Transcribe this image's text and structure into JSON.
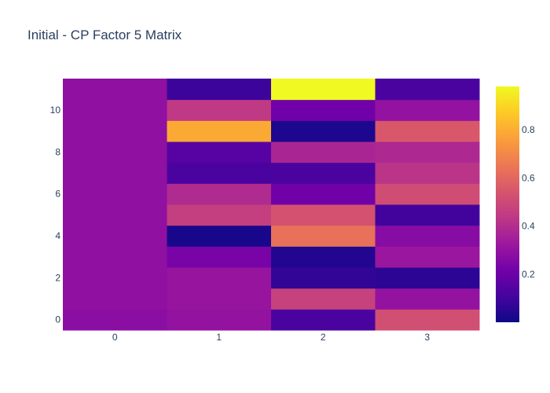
{
  "chart_data": {
    "type": "heatmap",
    "title": "Initial - CP Factor 5 Matrix",
    "x": [
      0,
      1,
      2,
      3
    ],
    "y": [
      0,
      1,
      2,
      3,
      4,
      5,
      6,
      7,
      8,
      9,
      10,
      11
    ],
    "x_ticks": [
      "0",
      "1",
      "2",
      "3"
    ],
    "y_ticks": [
      "0",
      "2",
      "4",
      "6",
      "8",
      "10"
    ],
    "z": [
      [
        0.28,
        0.3,
        0.12,
        0.52
      ],
      [
        0.29,
        0.31,
        0.47,
        0.3
      ],
      [
        0.29,
        0.31,
        0.07,
        0.06
      ],
      [
        0.29,
        0.23,
        0.04,
        0.32
      ],
      [
        0.29,
        0.02,
        0.63,
        0.27
      ],
      [
        0.29,
        0.46,
        0.53,
        0.1
      ],
      [
        0.29,
        0.39,
        0.21,
        0.51
      ],
      [
        0.29,
        0.12,
        0.12,
        0.42
      ],
      [
        0.29,
        0.15,
        0.37,
        0.38
      ],
      [
        0.29,
        0.79,
        0.03,
        0.55
      ],
      [
        0.29,
        0.44,
        0.21,
        0.3
      ],
      [
        0.29,
        0.09,
        0.98,
        0.12
      ]
    ],
    "colorscale": "plasma",
    "zlim": [
      0,
      0.98
    ],
    "colorbar_ticks": [
      0.2,
      0.4,
      0.6,
      0.8
    ],
    "colorbar_tick_labels": [
      "0.2",
      "0.4",
      "0.6",
      "0.8"
    ],
    "grid": false,
    "colorbar_position": "right"
  }
}
